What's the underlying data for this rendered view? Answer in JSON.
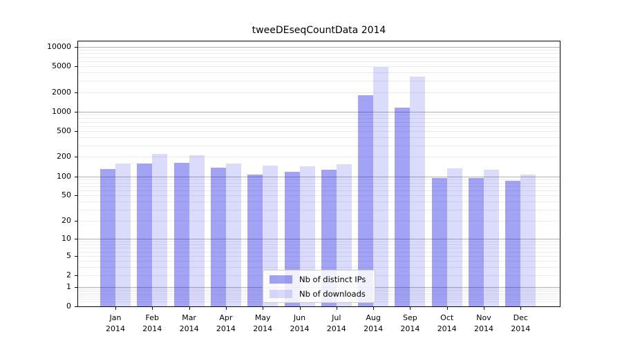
{
  "chart_data": {
    "type": "bar",
    "title": "tweeDEseqCountData 2014",
    "categories": [
      "Jan 2014",
      "Feb 2014",
      "Mar 2014",
      "Apr 2014",
      "May 2014",
      "Jun 2014",
      "Jul 2014",
      "Aug 2014",
      "Sep 2014",
      "Oct 2014",
      "Nov 2014",
      "Dec 2014"
    ],
    "series": [
      {
        "name": "Nb of distinct IPs",
        "color": "rgba(0,0,230,0.36)",
        "values": [
          130,
          157,
          163,
          136,
          106,
          119,
          126,
          1800,
          1150,
          94,
          94,
          86
        ]
      },
      {
        "name": "Nb of downloads",
        "color": "rgba(0,0,230,0.14)",
        "values": [
          158,
          222,
          211,
          158,
          147,
          144,
          155,
          4900,
          3500,
          133,
          126,
          106
        ]
      }
    ],
    "xlabel": "",
    "ylabel": "",
    "yscale": "log1p",
    "yticks": [
      0,
      1,
      2,
      5,
      10,
      20,
      50,
      100,
      200,
      500,
      1000,
      2000,
      5000,
      10000
    ],
    "ylim": [
      0,
      12000
    ],
    "grid": {
      "on": true,
      "major_color": "#b1b1b1",
      "minor_color": "#ececec"
    },
    "legend_position": "lower center"
  }
}
